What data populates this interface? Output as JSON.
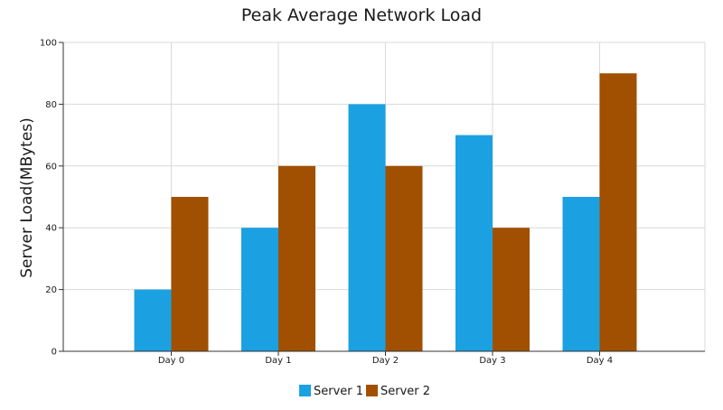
{
  "chart_data": {
    "type": "bar",
    "title": "Peak Average Network Load",
    "xlabel": "",
    "ylabel": "Server Load(MBytes)",
    "categories": [
      "Day 0",
      "Day 1",
      "Day 2",
      "Day 3",
      "Day 4"
    ],
    "series": [
      {
        "name": "Server 1",
        "values": [
          20,
          40,
          80,
          70,
          50
        ],
        "color": "#1ba1e2"
      },
      {
        "name": "Server 2",
        "values": [
          50,
          60,
          60,
          40,
          90
        ],
        "color": "#a05000"
      }
    ],
    "ylim": [
      0,
      100
    ],
    "yticks": [
      0,
      20,
      40,
      60,
      80,
      100
    ],
    "grid": true,
    "legend": "bottom-center"
  }
}
